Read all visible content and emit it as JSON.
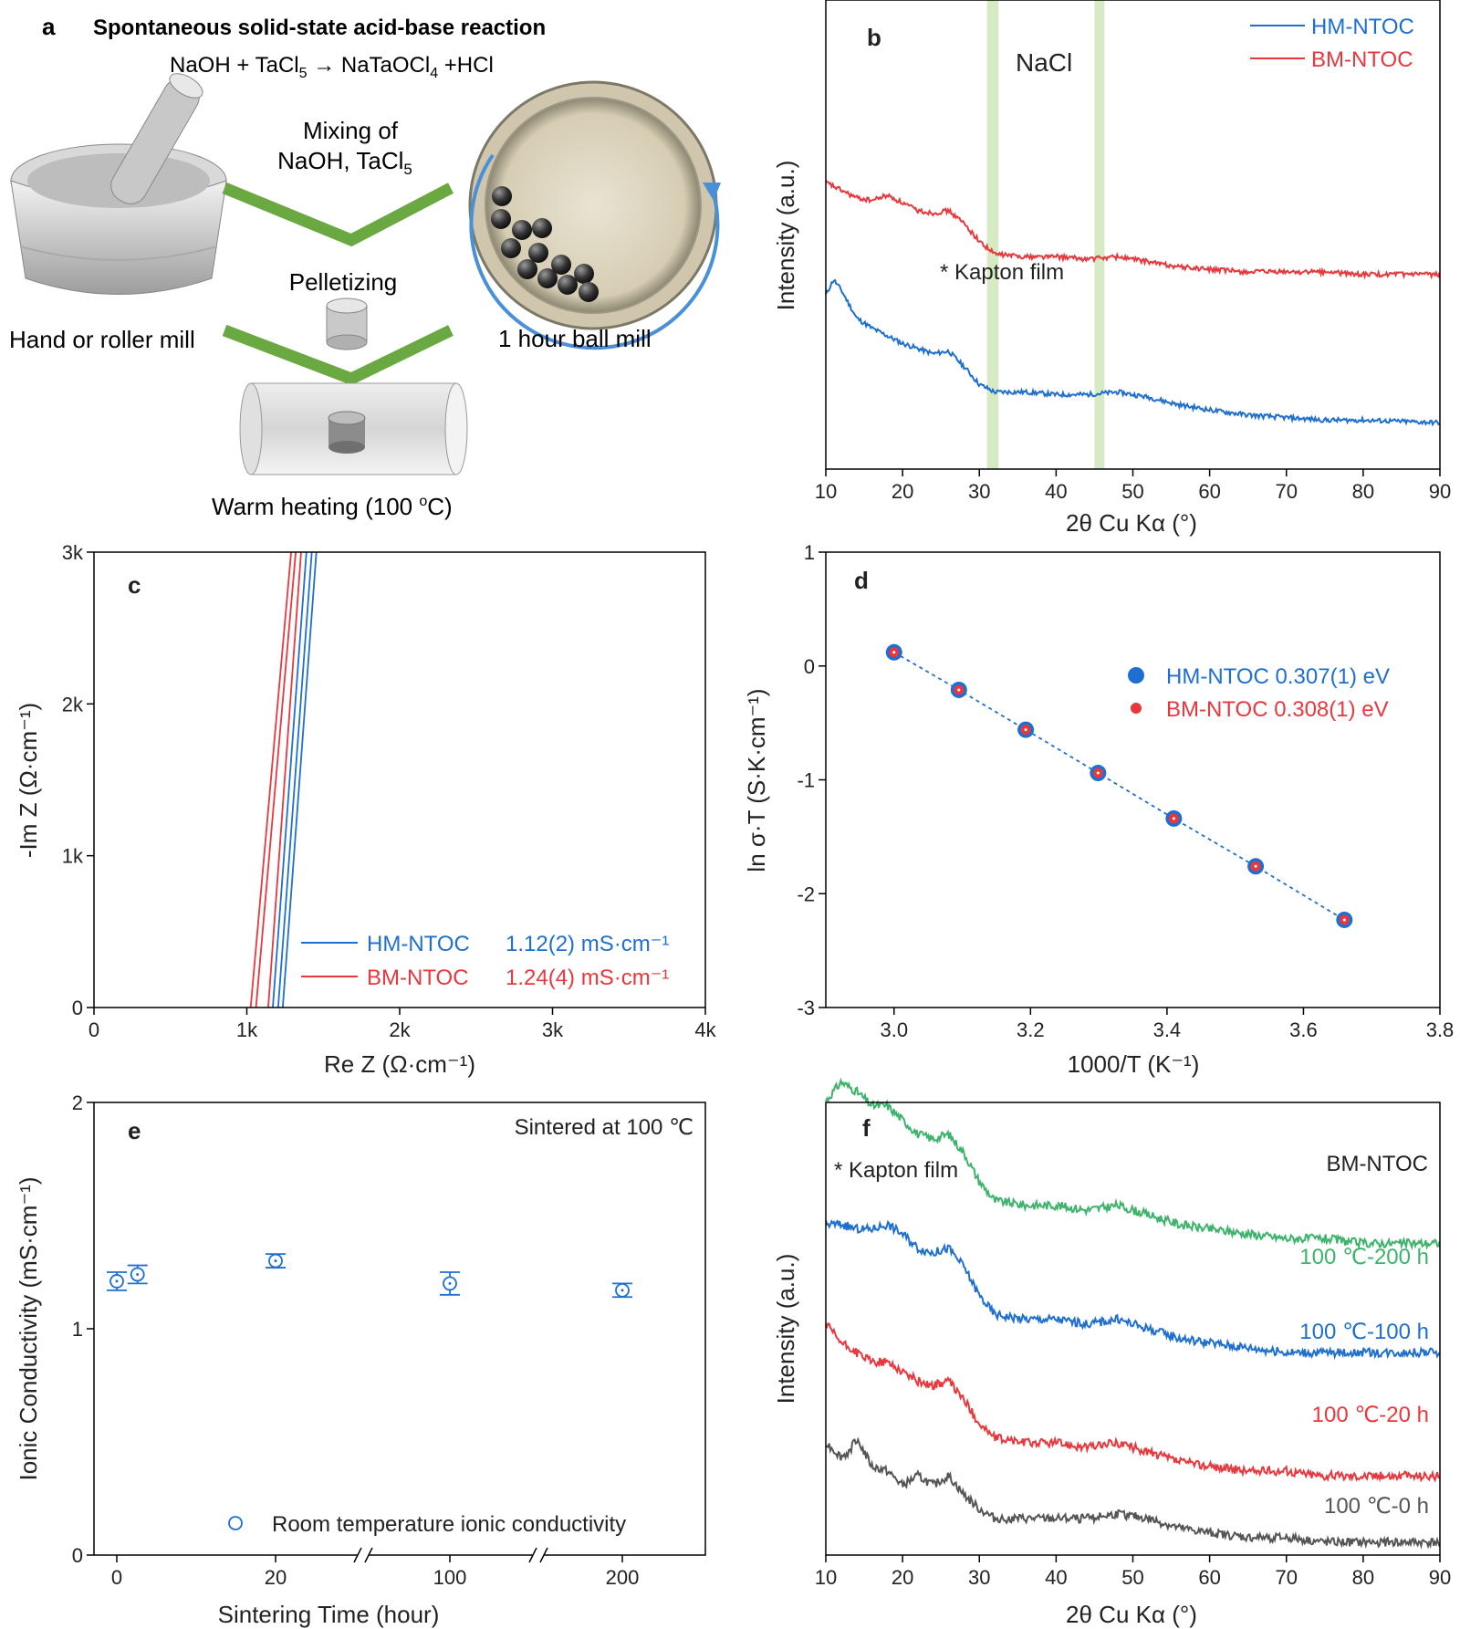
{
  "panels": {
    "a": {
      "letter": "a",
      "title": "Spontaneous solid-state acid-base reaction",
      "equation": {
        "lhs": "NaOH + TaCl",
        "lhs_sub": "5",
        "arrow": "→",
        "rhs_a": " NaTaOCl",
        "rhs_sub": "4",
        "rhs_b": " +HCl"
      },
      "step1_line1": "Mixing of",
      "step1_line2": "NaOH, TaCl",
      "step1_sub": "5",
      "step2": "Pelletizing",
      "step3": {
        "main": "Warm heating (100 ",
        "sup": "o",
        "tail": "C)"
      },
      "left_caption": "Hand or roller mill",
      "right_caption": "1 hour ball mill",
      "colors": {
        "chevron": "#6aa842",
        "arrow": "#4a90d9"
      }
    }
  },
  "chart_data": [
    {
      "panel": "b",
      "type": "line",
      "title": "",
      "xlabel": "2θ Cu Kα (°)",
      "ylabel": "Intensity (a.u.)",
      "xlim": [
        10,
        90
      ],
      "xticks": [
        10,
        20,
        30,
        40,
        50,
        60,
        70,
        80,
        90
      ],
      "bands": [
        {
          "label": "NaCl",
          "ranges": [
            [
              31,
              32.5
            ],
            [
              45,
              46.3
            ]
          ]
        }
      ],
      "annotations": [
        {
          "text": "* Kapton film",
          "x": 11
        }
      ],
      "legend": "top-right",
      "series": [
        {
          "name": "HM-NTOC",
          "color": "#1f6fd1",
          "x": [
            10,
            11,
            12,
            14,
            16,
            18,
            20,
            22,
            24,
            26,
            28,
            30,
            32,
            36,
            40,
            44,
            48,
            52,
            56,
            60,
            65,
            70,
            75,
            80,
            90
          ],
          "y": [
            0.56,
            0.62,
            0.58,
            0.47,
            0.43,
            0.4,
            0.37,
            0.35,
            0.33,
            0.34,
            0.28,
            0.21,
            0.18,
            0.18,
            0.17,
            0.17,
            0.18,
            0.16,
            0.13,
            0.11,
            0.09,
            0.08,
            0.07,
            0.07,
            0.06
          ]
        },
        {
          "name": "BM-NTOC",
          "color": "#e8383d",
          "x": [
            10,
            12,
            14,
            16,
            18,
            20,
            22,
            24,
            26,
            28,
            30,
            32,
            36,
            40,
            44,
            48,
            52,
            56,
            60,
            65,
            70,
            75,
            80,
            90
          ],
          "y": [
            1.0,
            0.97,
            0.94,
            0.93,
            0.95,
            0.92,
            0.89,
            0.88,
            0.89,
            0.84,
            0.77,
            0.72,
            0.71,
            0.71,
            0.7,
            0.71,
            0.69,
            0.67,
            0.66,
            0.65,
            0.65,
            0.65,
            0.64,
            0.64
          ]
        }
      ]
    },
    {
      "panel": "c",
      "type": "line",
      "xlabel": "Re Z (Ω·cm⁻¹)",
      "ylabel": "-Im Z (Ω·cm⁻¹)",
      "xlim": [
        0,
        4000
      ],
      "ylim": [
        0,
        3000
      ],
      "xticks": [
        0,
        1000,
        2000,
        3000,
        4000
      ],
      "xticklabels": [
        "0",
        "1k",
        "2k",
        "3k",
        "4k"
      ],
      "yticks": [
        0,
        1000,
        2000,
        3000
      ],
      "yticklabels": [
        "0",
        "1k",
        "2k",
        "3k"
      ],
      "legend": "bottom-right",
      "series": [
        {
          "name": "HM-NTOC",
          "label": "1.12(2) mS·cm⁻¹",
          "color": "#1f6fd1",
          "lines": [
            [
              [
                1170,
                0
              ],
              [
                1390,
                3000
              ]
            ],
            [
              [
                1205,
                0
              ],
              [
                1425,
                3000
              ]
            ],
            [
              [
                1235,
                0
              ],
              [
                1455,
                3000
              ]
            ]
          ]
        },
        {
          "name": "BM-NTOC",
          "label": "1.24(4) mS·cm⁻¹",
          "color": "#e8383d",
          "lines": [
            [
              [
                1025,
                0
              ],
              [
                1290,
                3000
              ]
            ],
            [
              [
                1060,
                0
              ],
              [
                1320,
                3000
              ]
            ],
            [
              [
                1140,
                0
              ],
              [
                1355,
                3000
              ]
            ]
          ]
        }
      ]
    },
    {
      "panel": "d",
      "type": "scatter",
      "xlabel": "1000/T (K⁻¹)",
      "ylabel": "ln σ·T (S·K·cm⁻¹)",
      "xlim": [
        2.9,
        3.8
      ],
      "ylim": [
        -3,
        1
      ],
      "xticks": [
        3.0,
        3.2,
        3.4,
        3.6,
        3.8
      ],
      "yticks": [
        -3,
        -2,
        -1,
        0,
        1
      ],
      "legend": "top-right",
      "x": [
        3.0,
        3.095,
        3.193,
        3.299,
        3.41,
        3.53,
        3.66
      ],
      "series": [
        {
          "name": "HM-NTOC 0.307(1) eV",
          "color": "#1f6fd1",
          "values": [
            0.12,
            -0.21,
            -0.56,
            -0.94,
            -1.34,
            -1.76,
            -2.23
          ]
        },
        {
          "name": "BM-NTOC 0.308(1) eV",
          "color": "#e8383d",
          "values": [
            0.12,
            -0.21,
            -0.56,
            -0.94,
            -1.34,
            -1.76,
            -2.23
          ]
        }
      ]
    },
    {
      "panel": "e",
      "type": "scatter",
      "xlabel": "Sintering Time (hour)",
      "ylabel": "Ionic Conductivity (mS·cm⁻¹)",
      "ylim": [
        0,
        2
      ],
      "yticks": [
        0,
        1,
        2
      ],
      "xticklabels": [
        "0",
        "20",
        "100",
        "200"
      ],
      "note": "Sintered at 100 ℃",
      "legend": "bottom-right",
      "series": [
        {
          "name": "Room temperature ionic conductivity",
          "color": "#1f6fd1",
          "x": [
            0,
            1,
            20,
            100,
            200
          ],
          "values": [
            1.21,
            1.24,
            1.3,
            1.2,
            1.17
          ],
          "errors": [
            0.04,
            0.04,
            0.03,
            0.05,
            0.03
          ]
        }
      ]
    },
    {
      "panel": "f",
      "type": "line",
      "xlabel": "2θ Cu Kα (°)",
      "ylabel": "Intensity (a.u.)",
      "xlim": [
        10,
        90
      ],
      "xticks": [
        10,
        20,
        30,
        40,
        50,
        60,
        70,
        80,
        90
      ],
      "heading": "BM-NTOC",
      "annotations": [
        {
          "text": "* Kapton film",
          "x": 11
        }
      ],
      "series": [
        {
          "name": "100 ℃-200 h",
          "color": "#3db36b",
          "x": [
            10,
            12,
            14,
            16,
            18,
            20,
            22,
            24,
            26,
            28,
            30,
            32,
            36,
            40,
            44,
            48,
            52,
            56,
            60,
            65,
            70,
            75,
            80,
            90
          ],
          "y": [
            0.93,
            0.97,
            0.95,
            0.92,
            0.92,
            0.89,
            0.86,
            0.85,
            0.86,
            0.82,
            0.76,
            0.72,
            0.71,
            0.71,
            0.7,
            0.71,
            0.69,
            0.67,
            0.66,
            0.65,
            0.64,
            0.64,
            0.63,
            0.63
          ]
        },
        {
          "name": "100 ℃-100 h",
          "color": "#1f6fd1",
          "x": [
            10,
            12,
            14,
            16,
            18,
            20,
            22,
            24,
            26,
            28,
            30,
            32,
            36,
            40,
            44,
            48,
            52,
            56,
            60,
            65,
            70,
            75,
            80,
            90
          ],
          "y": [
            0.67,
            0.67,
            0.66,
            0.66,
            0.67,
            0.65,
            0.62,
            0.61,
            0.62,
            0.58,
            0.52,
            0.48,
            0.47,
            0.47,
            0.46,
            0.47,
            0.45,
            0.43,
            0.42,
            0.41,
            0.4,
            0.4,
            0.4,
            0.4
          ]
        },
        {
          "name": "100 ℃-20 h",
          "color": "#e8383d",
          "x": [
            10,
            12,
            14,
            16,
            18,
            20,
            22,
            24,
            26,
            28,
            30,
            32,
            36,
            40,
            44,
            48,
            52,
            56,
            60,
            65,
            70,
            75,
            80,
            90
          ],
          "y": [
            0.46,
            0.42,
            0.4,
            0.38,
            0.38,
            0.36,
            0.34,
            0.33,
            0.34,
            0.3,
            0.25,
            0.22,
            0.21,
            0.21,
            0.2,
            0.21,
            0.19,
            0.17,
            0.16,
            0.15,
            0.15,
            0.14,
            0.14,
            0.14
          ]
        },
        {
          "name": "100 ℃-0 h",
          "color": "#555555",
          "x": [
            10,
            12,
            13,
            14,
            15,
            16,
            18,
            20,
            22,
            24,
            26,
            28,
            30,
            32,
            36,
            40,
            44,
            48,
            52,
            56,
            60,
            65,
            70,
            75,
            80,
            90
          ],
          "y": [
            0.21,
            0.18,
            0.19,
            0.22,
            0.19,
            0.16,
            0.15,
            0.12,
            0.14,
            0.12,
            0.14,
            0.1,
            0.07,
            0.05,
            0.05,
            0.05,
            0.05,
            0.06,
            0.05,
            0.03,
            0.02,
            0.01,
            0.01,
            0.0,
            0.0,
            0.0
          ]
        }
      ]
    }
  ]
}
